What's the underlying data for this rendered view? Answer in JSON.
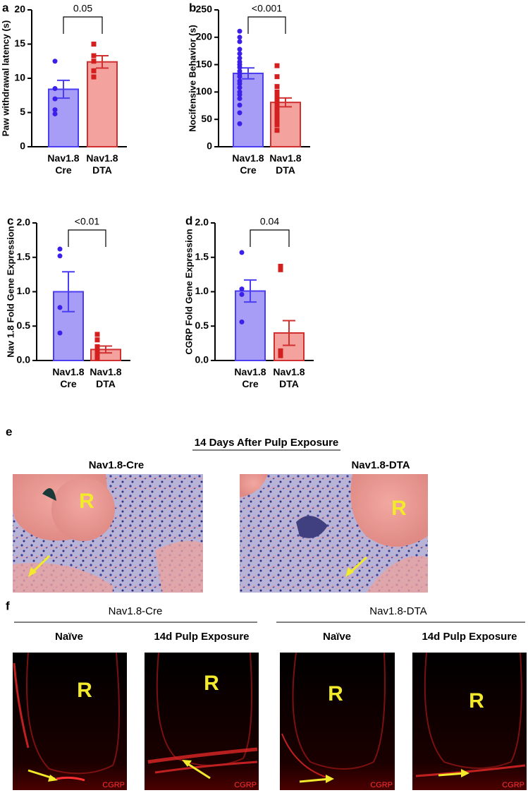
{
  "chart_data": [
    {
      "type": "bar",
      "panel": "a",
      "ylabel": "Paw withdrawal latency (s)",
      "categories": [
        "Nav1.8\nCre",
        "Nav1.8\nDTA"
      ],
      "values": [
        8.4,
        12.4
      ],
      "errors": [
        1.3,
        0.9
      ],
      "points": [
        [
          12.5,
          8.5,
          7.0,
          4.8,
          5.4
        ],
        [
          15.0,
          13.3,
          12.5,
          11.1,
          10.2
        ]
      ],
      "colors": [
        "#a79cf6",
        "#f3a29e"
      ],
      "edge_colors": [
        "#4b3df0",
        "#d03030"
      ],
      "point_colors": [
        "#3a20ea",
        "#d41f1f"
      ],
      "annotation": "0.05",
      "ylim": [
        0,
        20
      ],
      "yticks": [
        0,
        5,
        10,
        15,
        20
      ]
    },
    {
      "type": "bar",
      "panel": "b",
      "ylabel": "Nocifensive Behavior (s)",
      "categories": [
        "Nav1.8\nCre",
        "Nav1.8\nDTA"
      ],
      "values": [
        134,
        81
      ],
      "errors": [
        10,
        8
      ],
      "points": [
        [
          211,
          200,
          192,
          178,
          170,
          162,
          155,
          150,
          145,
          138,
          133,
          128,
          120,
          115,
          108,
          100,
          95,
          88,
          76,
          62,
          42
        ],
        [
          148,
          128,
          110,
          100,
          95,
          90,
          86,
          82,
          80,
          75,
          70,
          65,
          60,
          52,
          48,
          40,
          30
        ]
      ],
      "colors": [
        "#a79cf6",
        "#f3a29e"
      ],
      "edge_colors": [
        "#4b3df0",
        "#d03030"
      ],
      "point_colors": [
        "#3a20ea",
        "#d41f1f"
      ],
      "annotation": "<0.001",
      "ylim": [
        0,
        250
      ],
      "yticks": [
        0,
        50,
        100,
        150,
        200,
        250
      ]
    },
    {
      "type": "bar",
      "panel": "c",
      "ylabel": "Nav 1.8 Fold Gene Expression",
      "categories": [
        "Nav1.8\nCre",
        "Nav1.8\nDTA"
      ],
      "values": [
        1.0,
        0.16
      ],
      "errors": [
        0.29,
        0.05
      ],
      "points": [
        [
          1.62,
          1.52,
          0.77,
          0.4
        ],
        [
          0.38,
          0.3,
          0.2,
          0.16,
          0.1,
          0.05,
          0.03,
          0.05
        ]
      ],
      "colors": [
        "#a79cf6",
        "#f3a29e"
      ],
      "edge_colors": [
        "#4b3df0",
        "#d03030"
      ],
      "point_colors": [
        "#3a20ea",
        "#d41f1f"
      ],
      "annotation": "<0.01",
      "ylim": [
        0,
        2
      ],
      "yticks": [
        {
          "value": 0,
          "label": "0.0"
        },
        0.5,
        {
          "value": 1,
          "label": "1.0"
        },
        1.5,
        {
          "value": 2,
          "label": "2.0"
        }
      ]
    },
    {
      "type": "bar",
      "panel": "d",
      "ylabel": "CGRP Fold Gene Expression",
      "categories": [
        "Nav1.8\nCre",
        "Nav1.8\nDTA"
      ],
      "values": [
        1.01,
        0.4
      ],
      "errors": [
        0.16,
        0.18
      ],
      "points": [
        [
          1.57,
          1.04,
          0.96,
          0.56
        ],
        [
          1.37,
          1.32,
          0.14,
          0.09,
          0.08,
          0.09,
          0.07,
          0.08
        ]
      ],
      "colors": [
        "#a79cf6",
        "#f3a29e"
      ],
      "edge_colors": [
        "#4b3df0",
        "#d03030"
      ],
      "point_colors": [
        "#3a20ea",
        "#d41f1f"
      ],
      "annotation": "0.04",
      "ylim": [
        0,
        2
      ],
      "yticks": [
        {
          "value": 0,
          "label": "0.0"
        },
        0.5,
        {
          "value": 1,
          "label": "1.0"
        },
        1.5,
        {
          "value": 2,
          "label": "2.0"
        }
      ]
    }
  ],
  "panel_e": {
    "label": "e",
    "title": "14 Days After Pulp Exposure",
    "images": [
      {
        "title": "Nav1.8-Cre",
        "marker": "R"
      },
      {
        "title": "Nav1.8-DTA",
        "marker": "R"
      }
    ]
  },
  "panel_f": {
    "label": "f",
    "groups": [
      {
        "title": "Nav1.8-Cre",
        "images": [
          {
            "title": "Naïve",
            "marker": "R",
            "stain": "CGRP"
          },
          {
            "title": "14d Pulp Exposure",
            "marker": "R",
            "stain": "CGRP"
          }
        ]
      },
      {
        "title": "Nav1.8-DTA",
        "images": [
          {
            "title": "Naïve",
            "marker": "R",
            "stain": "CGRP"
          },
          {
            "title": "14d Pulp Exposure",
            "marker": "R",
            "stain": "CGRP"
          }
        ]
      }
    ]
  }
}
